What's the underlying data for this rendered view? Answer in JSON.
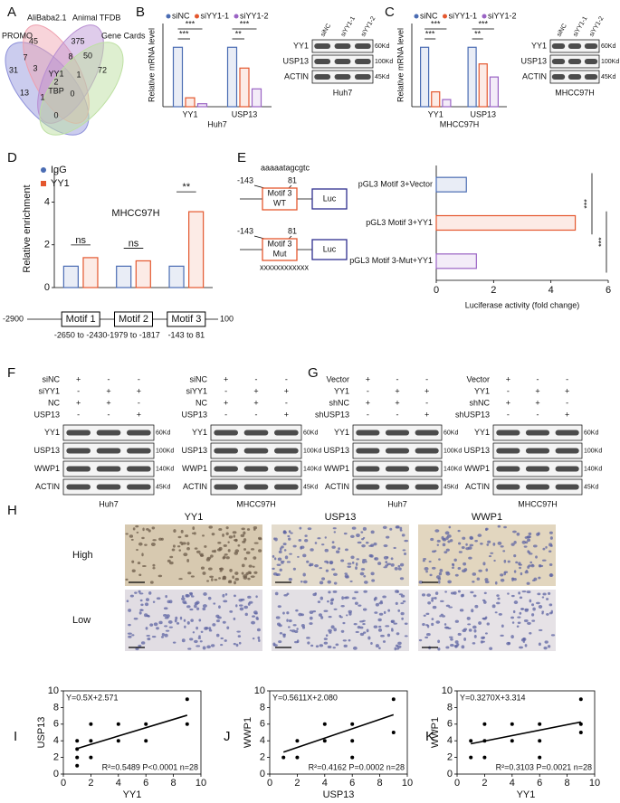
{
  "panel_labels": [
    "A",
    "B",
    "C",
    "D",
    "E",
    "F",
    "G",
    "H",
    "I",
    "J",
    "K"
  ],
  "venn": {
    "sets": [
      "PROMO",
      "AliBaba2.1",
      "Animal TFDB",
      "Gene Cards"
    ],
    "counts": [
      31,
      45,
      375,
      72,
      7,
      8,
      50,
      3,
      1,
      2,
      13,
      1,
      0,
      0
    ],
    "genes": [
      "YY1",
      "TBP"
    ]
  },
  "chart_data": [
    {
      "type": "bar",
      "ylabel": "Relative mRNA level",
      "xlabel": "Huh7",
      "categories": [
        "YY1",
        "USP13"
      ],
      "series": [
        {
          "name": "siNC",
          "color": "#4a6cb3",
          "values": [
            1.0,
            1.0
          ]
        },
        {
          "name": "siYY1-1",
          "color": "#e4572e",
          "values": [
            0.15,
            0.65
          ]
        },
        {
          "name": "siYY1-2",
          "color": "#9a63c4",
          "values": [
            0.05,
            0.3
          ]
        }
      ],
      "ylim": [
        0,
        1.4
      ],
      "significance": [
        "***",
        "***",
        "***",
        "**"
      ]
    },
    {
      "type": "bar",
      "ylabel": "Relative mRNA level",
      "xlabel": "MHCC97H",
      "categories": [
        "YY1",
        "USP13"
      ],
      "series": [
        {
          "name": "siNC",
          "color": "#4a6cb3",
          "values": [
            1.0,
            1.0
          ]
        },
        {
          "name": "siYY1-1",
          "color": "#e4572e",
          "values": [
            0.25,
            0.72
          ]
        },
        {
          "name": "siYY1-2",
          "color": "#9a63c4",
          "values": [
            0.12,
            0.5
          ]
        }
      ],
      "ylim": [
        0,
        1.4
      ],
      "significance": [
        "***",
        "***",
        "***",
        "**"
      ]
    },
    {
      "type": "bar",
      "title": "MHCC97H",
      "ylabel": "Relative enrichment",
      "categories": [
        "Motif 1",
        "Motif 2",
        "Motif 3"
      ],
      "series": [
        {
          "name": "IgG",
          "color": "#4a6cb3",
          "values": [
            1.0,
            1.0,
            1.0
          ]
        },
        {
          "name": "YY1",
          "color": "#e4572e",
          "values": [
            1.4,
            1.25,
            3.55
          ]
        }
      ],
      "ylim": [
        0,
        5.5
      ],
      "yticks": [
        0,
        2,
        4
      ],
      "significance": [
        "ns",
        "ns",
        "**"
      ],
      "promoter": {
        "start": -2900,
        "end": 100,
        "ranges": [
          "-2650 to -2430",
          "-1979 to -1817",
          "-143 to 81"
        ]
      }
    },
    {
      "type": "hbar",
      "xlabel": "Luciferase activity (fold change)",
      "categories": [
        "pGL3 Motif 3+Vector",
        "pGL3 Motif 3+YY1",
        "pGL3 Motif 3-Mut+YY1"
      ],
      "values": [
        1.05,
        4.85,
        1.4
      ],
      "colors": [
        "#4a6cb3",
        "#e4572e",
        "#9a63c4"
      ],
      "xlim": [
        0,
        6
      ],
      "xticks": [
        0,
        2,
        4,
        6
      ],
      "significance": [
        "***",
        "***"
      ]
    },
    {
      "type": "scatter",
      "xlabel": "YY1",
      "ylabel": "USP13",
      "x": [
        1,
        1,
        1,
        1,
        2,
        2,
        2,
        4,
        4,
        6,
        6,
        9,
        9
      ],
      "y": [
        1,
        2,
        3,
        4,
        2,
        4,
        6,
        4,
        6,
        4,
        6,
        6,
        9
      ],
      "xlim": [
        0,
        10
      ],
      "ylim": [
        0,
        10
      ],
      "xticks": [
        0,
        2,
        4,
        6,
        8,
        10
      ],
      "yticks": [
        0,
        2,
        4,
        6,
        8,
        10
      ],
      "equation": "Y=0.5X+2.571",
      "stats": "R²=0.5489 P<0.0001 n=28",
      "fit": {
        "slope": 0.5,
        "intercept": 2.571
      }
    },
    {
      "type": "scatter",
      "xlabel": "USP13",
      "ylabel": "WWP1",
      "x": [
        1,
        2,
        2,
        4,
        4,
        6,
        6,
        6,
        9,
        9
      ],
      "y": [
        2,
        2,
        4,
        4,
        6,
        2,
        4,
        6,
        5,
        9
      ],
      "xlim": [
        0,
        10
      ],
      "ylim": [
        0,
        10
      ],
      "xticks": [
        0,
        2,
        4,
        6,
        8,
        10
      ],
      "yticks": [
        0,
        2,
        4,
        6,
        8,
        10
      ],
      "equation": "Y=0.5611X+2.080",
      "stats": "R²=0.4162 P=0.0002 n=28",
      "fit": {
        "slope": 0.5611,
        "intercept": 2.08
      }
    },
    {
      "type": "scatter",
      "xlabel": "YY1",
      "ylabel": "WWP1",
      "x": [
        1,
        1,
        2,
        2,
        2,
        4,
        4,
        6,
        6,
        6,
        9,
        9,
        9
      ],
      "y": [
        2,
        4,
        2,
        4,
        6,
        4,
        6,
        2,
        4,
        6,
        5,
        6,
        9
      ],
      "xlim": [
        0,
        10
      ],
      "ylim": [
        0,
        10
      ],
      "xticks": [
        0,
        2,
        4,
        6,
        8,
        10
      ],
      "yticks": [
        0,
        2,
        4,
        6,
        8,
        10
      ],
      "equation": "Y=0.3270X+3.314",
      "stats": "R²=0.3103 P=0.0021 n=28",
      "fit": {
        "slope": 0.327,
        "intercept": 3.314
      }
    }
  ],
  "construct": {
    "sequence": "aaaaatagcgtc",
    "start": "-143",
    "end": "81",
    "wt": [
      "Motif 3",
      "WT"
    ],
    "mut": [
      "Motif 3",
      "Mut"
    ],
    "reporter": "Luc",
    "mut_sequence": "xxxxxxxxxxxx"
  },
  "blots": [
    {
      "cell": "Huh7",
      "lanes": [
        "siNC",
        "siYY1-1",
        "siYY1-2"
      ],
      "proteins": [
        "YY1",
        "USP13",
        "ACTIN"
      ],
      "sizes": [
        "60Kd",
        "100Kd",
        "45Kd"
      ]
    },
    {
      "cell": "MHCC97H",
      "lanes": [
        "siNC",
        "siYY1-1",
        "siYY1-2"
      ],
      "proteins": [
        "YY1",
        "USP13",
        "ACTIN"
      ],
      "sizes": [
        "60Kd",
        "100Kd",
        "45Kd"
      ]
    },
    {
      "cell": "Huh7",
      "conditions": [
        {
          "name": "siNC",
          "signs": [
            "+",
            "-",
            "-"
          ]
        },
        {
          "name": "siYY1",
          "signs": [
            "-",
            "+",
            "+"
          ]
        },
        {
          "name": "NC",
          "signs": [
            "+",
            "+",
            "-"
          ]
        },
        {
          "name": "USP13",
          "signs": [
            "-",
            "-",
            "+"
          ]
        }
      ],
      "proteins": [
        "YY1",
        "USP13",
        "WWP1",
        "ACTIN"
      ],
      "sizes": [
        "60Kd",
        "100Kd",
        "140Kd",
        "45Kd"
      ]
    },
    {
      "cell": "MHCC97H",
      "conditions": [
        {
          "name": "siNC",
          "signs": [
            "+",
            "-",
            "-"
          ]
        },
        {
          "name": "siYY1",
          "signs": [
            "-",
            "+",
            "+"
          ]
        },
        {
          "name": "NC",
          "signs": [
            "+",
            "+",
            "-"
          ]
        },
        {
          "name": "USP13",
          "signs": [
            "-",
            "-",
            "+"
          ]
        }
      ],
      "proteins": [
        "YY1",
        "USP13",
        "WWP1",
        "ACTIN"
      ],
      "sizes": [
        "60Kd",
        "100Kd",
        "140Kd",
        "45Kd"
      ]
    },
    {
      "cell": "Huh7",
      "conditions": [
        {
          "name": "Vector",
          "signs": [
            "+",
            "-",
            "-"
          ]
        },
        {
          "name": "YY1",
          "signs": [
            "-",
            "+",
            "+"
          ]
        },
        {
          "name": "shNC",
          "signs": [
            "+",
            "+",
            "-"
          ]
        },
        {
          "name": "shUSP13",
          "signs": [
            "-",
            "-",
            "+"
          ]
        }
      ],
      "proteins": [
        "YY1",
        "USP13",
        "WWP1",
        "ACTIN"
      ],
      "sizes": [
        "60Kd",
        "100Kd",
        "140Kd",
        "45Kd"
      ]
    },
    {
      "cell": "MHCC97H",
      "conditions": [
        {
          "name": "Vector",
          "signs": [
            "+",
            "-",
            "-"
          ]
        },
        {
          "name": "YY1",
          "signs": [
            "-",
            "+",
            "+"
          ]
        },
        {
          "name": "shNC",
          "signs": [
            "+",
            "+",
            "-"
          ]
        },
        {
          "name": "shUSP13",
          "signs": [
            "-",
            "-",
            "+"
          ]
        }
      ],
      "proteins": [
        "YY1",
        "USP13",
        "WWP1",
        "ACTIN"
      ],
      "sizes": [
        "60Kd",
        "100Kd",
        "140Kd",
        "45Kd"
      ]
    }
  ],
  "ihc": {
    "columns": [
      "YY1",
      "USP13",
      "WWP1"
    ],
    "rows": [
      "High",
      "Low"
    ]
  }
}
